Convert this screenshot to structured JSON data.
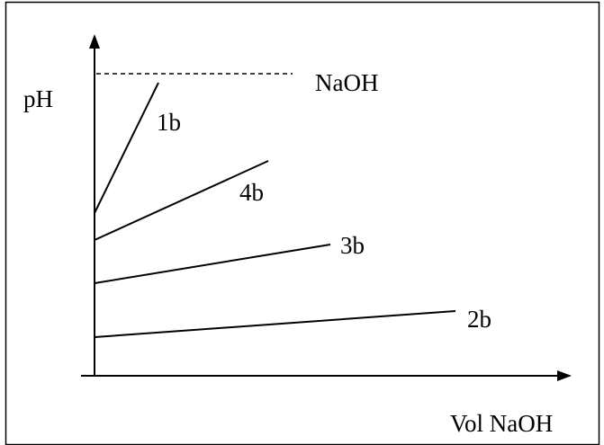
{
  "diagram": {
    "y_axis_label": "pH",
    "x_axis_label": "Vol NaOH",
    "reference": {
      "label": "NaOH",
      "style": "dashed"
    },
    "lines": [
      {
        "label": "1b"
      },
      {
        "label": "4b"
      },
      {
        "label": "3b"
      },
      {
        "label": "2b"
      }
    ]
  }
}
